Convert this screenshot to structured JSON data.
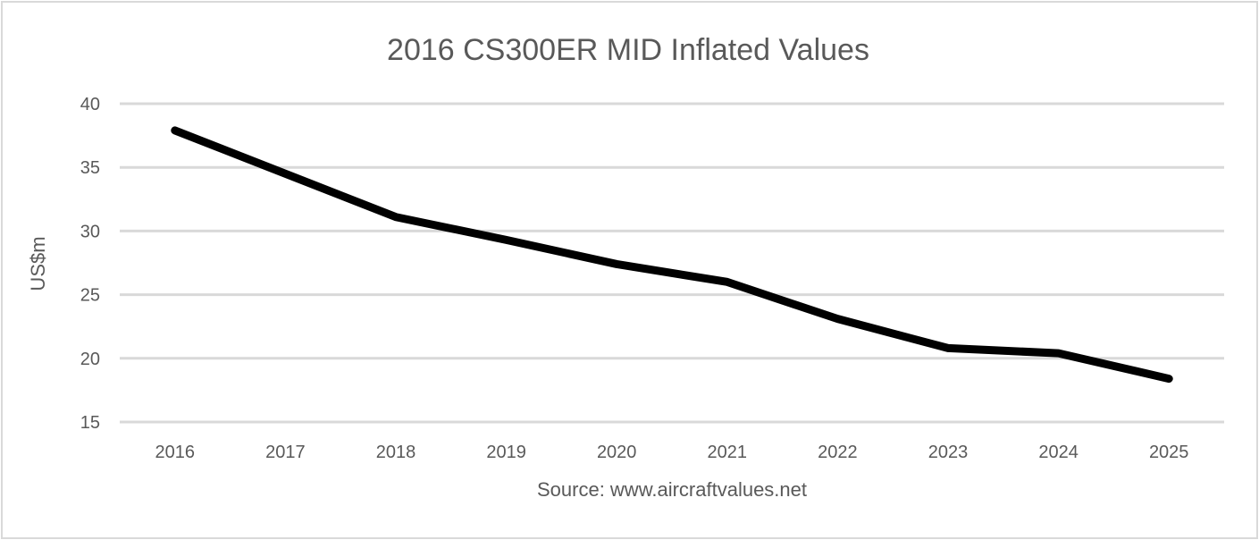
{
  "chart_data": {
    "type": "line",
    "title": "2016 CS300ER MID Inflated Values",
    "xlabel": "Source: www.aircraftvalues.net",
    "ylabel": "US$m",
    "categories": [
      "2016",
      "2017",
      "2018",
      "2019",
      "2020",
      "2021",
      "2022",
      "2023",
      "2024",
      "2025"
    ],
    "series": [
      {
        "values": [
          37.9,
          34.5,
          31.1,
          29.3,
          27.4,
          26.0,
          23.1,
          20.8,
          20.4,
          18.4
        ],
        "color": "#000000"
      }
    ],
    "ylim": [
      15,
      40
    ],
    "yticks": [
      15,
      20,
      25,
      30,
      35,
      40
    ],
    "grid": true,
    "legend": "none",
    "colors": {
      "grid": "#d9d9d9",
      "text": "#595959",
      "line": "#000000"
    }
  }
}
